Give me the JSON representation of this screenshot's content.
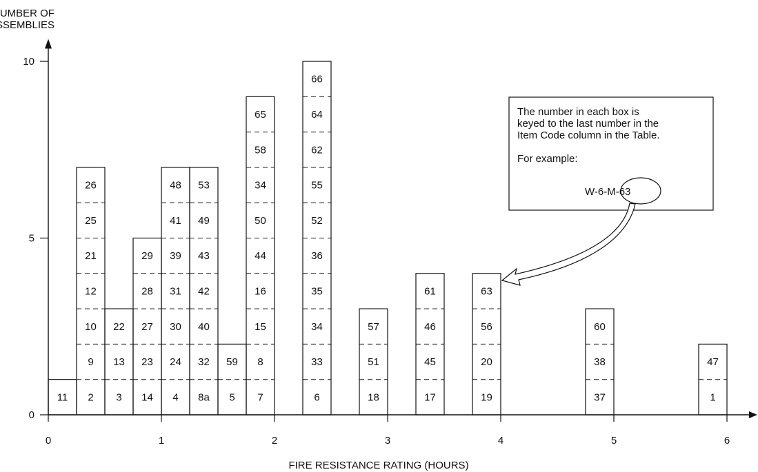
{
  "chart_data": {
    "type": "bar",
    "title": "",
    "xlabel": "FIRE RESISTANCE RATING (HOURS)",
    "ylabel_lines": [
      "NUMBER OF",
      "ASSEMBLIES"
    ],
    "xlim": [
      0,
      6.2
    ],
    "ylim": [
      0,
      10.4
    ],
    "x_ticks": [
      {
        "value": 0,
        "label": "0"
      },
      {
        "value": 1,
        "label": "1"
      },
      {
        "value": 2,
        "label": "2"
      },
      {
        "value": 3,
        "label": "3"
      },
      {
        "value": 4,
        "label": "4"
      },
      {
        "value": 5,
        "label": "5"
      },
      {
        "value": 6,
        "label": "6"
      }
    ],
    "y_ticks": [
      {
        "value": 0,
        "label": "0"
      },
      {
        "value": 5,
        "label": "5"
      },
      {
        "value": 10,
        "label": "10"
      }
    ],
    "bar_width_hours": 0.25,
    "bars": [
      {
        "x_start": 0.0,
        "items": [
          "11"
        ]
      },
      {
        "x_start": 0.25,
        "items": [
          "2",
          "9",
          "10",
          "12",
          "21",
          "25",
          "26"
        ]
      },
      {
        "x_start": 0.5,
        "items": [
          "3",
          "13",
          "22"
        ]
      },
      {
        "x_start": 0.75,
        "items": [
          "14",
          "23",
          "27",
          "28",
          "29"
        ]
      },
      {
        "x_start": 1.0,
        "items": [
          "4",
          "24",
          "30",
          "31",
          "39",
          "41",
          "48"
        ]
      },
      {
        "x_start": 1.25,
        "items": [
          "8a",
          "32",
          "40",
          "42",
          "43",
          "49",
          "53"
        ]
      },
      {
        "x_start": 1.5,
        "items": [
          "5",
          "59"
        ]
      },
      {
        "x_start": 1.75,
        "items": [
          "7",
          "8",
          "15",
          "16",
          "44",
          "50",
          "34",
          "58",
          "65"
        ]
      },
      {
        "x_start": 2.25,
        "items": [
          "6",
          "33",
          "34",
          "35",
          "36",
          "52",
          "55",
          "62",
          "64",
          "66"
        ]
      },
      {
        "x_start": 2.75,
        "items": [
          "18",
          "51",
          "57"
        ]
      },
      {
        "x_start": 3.25,
        "items": [
          "17",
          "45",
          "46",
          "61"
        ]
      },
      {
        "x_start": 3.75,
        "items": [
          "19",
          "20",
          "56",
          "63"
        ]
      },
      {
        "x_start": 4.75,
        "items": [
          "37",
          "38",
          "60"
        ]
      },
      {
        "x_start": 5.75,
        "items": [
          "1",
          "47"
        ]
      }
    ],
    "annotation": {
      "lines": [
        "The number in each box is",
        "keyed to the last number in the",
        "Item Code column in the Table.",
        "",
        "For example:"
      ],
      "example": "W-6-M-63",
      "points_to_item": "63"
    }
  }
}
